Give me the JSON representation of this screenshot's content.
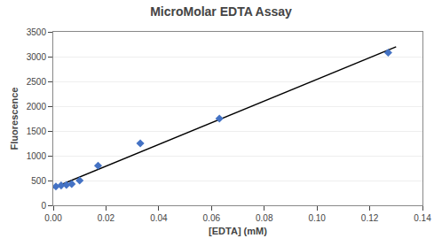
{
  "chart_data": {
    "type": "scatter",
    "title": "MicroMolar EDTA Assay",
    "xlabel": "[EDTA] (mM)",
    "ylabel": "Fluorescence",
    "series": [
      {
        "type": "line",
        "color": "#000000",
        "line_style": "solid",
        "x": [
          0.0,
          0.13
        ],
        "values": [
          353.335,
          3197.687
        ]
      },
      {
        "type": "scatter",
        "color": "#4472C4",
        "marker": "diamond",
        "x": [
          0.001,
          0.003,
          0.005,
          0.007,
          0.01,
          0.017,
          0.033,
          0.063,
          0.127
        ],
        "values": [
          380,
          400,
          410,
          430,
          500,
          800,
          1250,
          1750,
          3080
        ]
      }
    ],
    "xlim": [
      0,
      0.14
    ],
    "ylim": [
      0,
      3500
    ],
    "xticks": [
      {
        "value": 0,
        "label": "0.00"
      },
      0.02,
      0.04,
      0.06,
      0.08,
      {
        "value": 0.1,
        "label": "0.10"
      },
      0.12,
      0.14
    ],
    "yticks": [
      0,
      500,
      1000,
      1500,
      2000,
      2500,
      3000,
      3500
    ],
    "grid": "y"
  }
}
